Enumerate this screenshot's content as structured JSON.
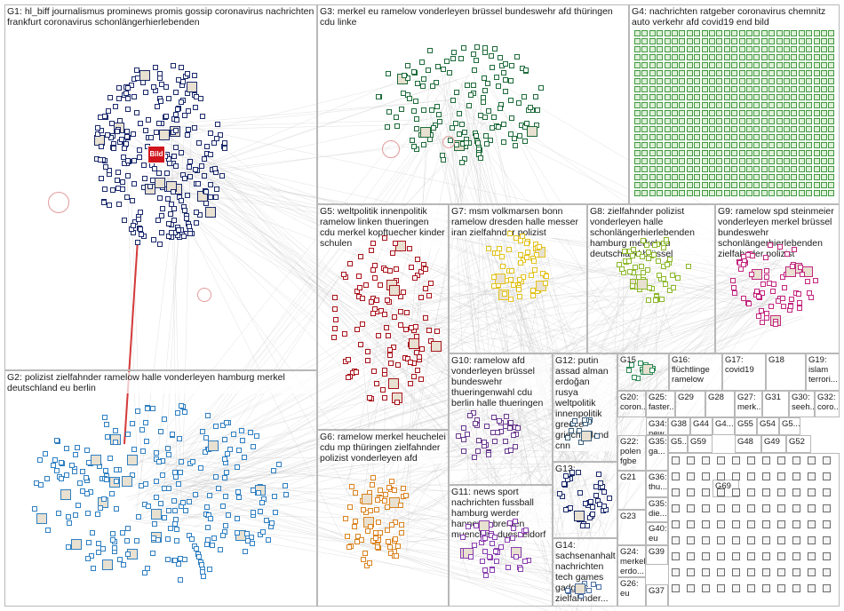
{
  "graph": {
    "background": "#ffffff",
    "edge_color": "#c8c8c8",
    "groups": [
      {
        "id": "G1",
        "label": "G1: hl_biff journalismus prominews promis gossip coronavirus nachrichten frankfurt coronavirus schonlängerhierlebenden",
        "color": "#1b2a6b",
        "badge": "Bild"
      },
      {
        "id": "G2",
        "label": "G2: polizist zielfahnder ramelow halle vonderleyen hamburg merkel deutschland eu berlin",
        "color": "#2f7fc1"
      },
      {
        "id": "G3",
        "label": "G3: merkel eu ramelow vonderleyen brüssel bundeswehr afd thüringen cdu linke",
        "color": "#1e6b3a"
      },
      {
        "id": "G4",
        "label": "G4: nachrichten ratgeber coronavirus chemnitz auto verkehr afd covid19 end bild",
        "color": "#3f9a3f"
      },
      {
        "id": "G5",
        "label": "G5: weltpolitik innenpolitik ramelow linken thueringen cdu merkel kopftuecher kinder schulen",
        "color": "#a8141c"
      },
      {
        "id": "G6",
        "label": "G6: ramelow merkel heuchelei cdu mp thüringen zielfahnder polizist vonderleyen afd",
        "color": "#d9831f"
      },
      {
        "id": "G7",
        "label": "G7: msm volkmarsen bonn ramelow dresden halle messer iran zielfahnder polizist",
        "color": "#e3c21a"
      },
      {
        "id": "G8",
        "label": "G8: zielfahnder polizist vonderleyen halle schonlängerhierlebenden hamburg merkel eu deutschland brüssel",
        "color": "#8cb82a"
      },
      {
        "id": "G9",
        "label": "G9: ramelow spd steinmeier vonderleyen merkel brüssel bundeswehr schonlängerhierlebenden zielfahnder polizist",
        "color": "#c2267f"
      },
      {
        "id": "G10",
        "label": "G10: ramelow afd vonderleyen brüssel bundeswehr thueringenwahl cdu berlin halle thueringen",
        "color": "#6a3a8f"
      },
      {
        "id": "G11",
        "label": "G11: news sport nachrichten fussball hamburg werder hannover bremen muenchen duesseldorf",
        "color": "#8a3fb0"
      },
      {
        "id": "G12",
        "label": "G12: putin assad alman erdoğan rusya weltpolitik innenpolitik greece griechenland cnn",
        "color": "#3a5f7f"
      },
      {
        "id": "G13",
        "label": "G13:",
        "color": "#1b2a6b"
      },
      {
        "id": "G14",
        "label": "G14: sachsenanhalt nachrichten tech games gadgets zielfahnder...",
        "color": "#4a6fa5"
      },
      {
        "id": "G15",
        "label": "G15",
        "color": "#2e8b57"
      },
      {
        "id": "G16",
        "label": "G16: flüchtlinge ramelow",
        "color": "#5a7a2a"
      },
      {
        "id": "G17",
        "label": "G17: covid19",
        "color": "#8a3a6a"
      },
      {
        "id": "G18",
        "label": "G18",
        "color": "#b07a1a"
      },
      {
        "id": "G19",
        "label": "G19: islam terrori...",
        "color": "#2a4a8a"
      },
      {
        "id": "G20",
        "label": "G20: coron...",
        "color": "#3a7a3a"
      },
      {
        "id": "G25",
        "label": "G25: faster...",
        "color": "#4a4a8a"
      },
      {
        "id": "G29",
        "label": "G29",
        "color": "#8a2a2a"
      },
      {
        "id": "G28",
        "label": "G28",
        "color": "#2a7a7a"
      },
      {
        "id": "G27",
        "label": "G27: merk...",
        "color": "#6a6a2a"
      },
      {
        "id": "G31",
        "label": "G31",
        "color": "#7a2a7a"
      },
      {
        "id": "G30",
        "label": "G30: seeh...",
        "color": "#2a5a2a"
      },
      {
        "id": "G32",
        "label": "G32: coro...",
        "color": "#1a3a7a"
      },
      {
        "id": "G34",
        "label": "G34: new...",
        "color": "#5a3a1a"
      },
      {
        "id": "G38",
        "label": "G38",
        "color": "#3a3a3a"
      },
      {
        "id": "G44",
        "label": "G44",
        "color": "#2a6a2a"
      },
      {
        "id": "G4b",
        "label": "G4...",
        "color": "#6a2a4a"
      },
      {
        "id": "G55",
        "label": "G55",
        "color": "#2a2a6a"
      },
      {
        "id": "G54",
        "label": "G54",
        "color": "#4a6a2a"
      },
      {
        "id": "G5b",
        "label": "G5...",
        "color": "#6a4a2a"
      },
      {
        "id": "G22",
        "label": "G22: polen fgbe",
        "color": "#1a5a7a"
      },
      {
        "id": "G5c",
        "label": "G5...",
        "color": "#5a5a5a"
      },
      {
        "id": "G59",
        "label": "G59",
        "color": "#3a6a3a"
      },
      {
        "id": "G48",
        "label": "G48",
        "color": "#2a4a6a"
      },
      {
        "id": "G49",
        "label": "G49",
        "color": "#6a3a3a"
      },
      {
        "id": "G52",
        "label": "G52",
        "color": "#3a3a6a"
      },
      {
        "id": "G35",
        "label": "G35: ga...",
        "color": "#7a5a2a"
      },
      {
        "id": "G21",
        "label": "G21",
        "color": "#2a6a5a"
      },
      {
        "id": "G36",
        "label": "G36: thu...",
        "color": "#5a2a5a"
      },
      {
        "id": "G35b",
        "label": "G35: die...",
        "color": "#3a5a6a"
      },
      {
        "id": "G23",
        "label": "G23",
        "color": "#6a6a3a"
      },
      {
        "id": "G40",
        "label": "G40: eu",
        "color": "#2a3a5a"
      },
      {
        "id": "G24",
        "label": "G24: merkel erdo...",
        "color": "#5a3a6a"
      },
      {
        "id": "G39",
        "label": "G39",
        "color": "#3a6a6a"
      },
      {
        "id": "G26",
        "label": "G26: eu",
        "color": "#6a2a2a"
      },
      {
        "id": "G37",
        "label": "G37",
        "color": "#2a2a2a"
      },
      {
        "id": "G69",
        "label": "G69",
        "color": "#4a4a4a"
      }
    ]
  }
}
